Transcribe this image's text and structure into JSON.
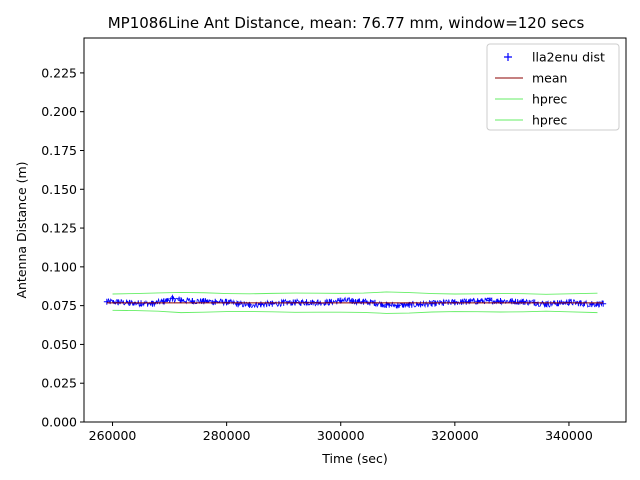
{
  "chart_data": {
    "type": "line",
    "title": "MP1086Line Ant Distance, mean: 76.77 mm, window=120 secs",
    "xlabel": "Time (sec)",
    "ylabel": "Antenna Distance (m)",
    "xlim": [
      255000,
      350000
    ],
    "ylim": [
      0.0,
      0.2475
    ],
    "xticks": [
      260000,
      280000,
      300000,
      320000,
      340000
    ],
    "xtick_labels": [
      "260000",
      "280000",
      "300000",
      "320000",
      "340000"
    ],
    "yticks": [
      0.0,
      0.025,
      0.05,
      0.075,
      0.1,
      0.125,
      0.15,
      0.175,
      0.2,
      0.225
    ],
    "ytick_labels": [
      "0.000",
      "0.025",
      "0.050",
      "0.075",
      "0.100",
      "0.125",
      "0.150",
      "0.175",
      "0.200",
      "0.225"
    ],
    "grid": false,
    "legend_position": "top-right",
    "series": [
      {
        "name": "lla2enu dist",
        "style": "marker-plus",
        "color": "#0000ff",
        "x": [
          259000,
          261000,
          263000,
          265000,
          267000,
          269000,
          270500,
          272000,
          274000,
          276000,
          278000,
          280000,
          282000,
          284000,
          286000,
          288000,
          290000,
          292000,
          294000,
          296000,
          298000,
          300000,
          302000,
          304000,
          306000,
          308000,
          310000,
          312000,
          314000,
          316000,
          318000,
          320000,
          322000,
          324000,
          326000,
          328000,
          330000,
          332000,
          334000,
          336000,
          338000,
          340000,
          342000,
          344000,
          346000
        ],
        "values": [
          0.0775,
          0.0772,
          0.0768,
          0.0765,
          0.0762,
          0.0778,
          0.0795,
          0.0785,
          0.078,
          0.0778,
          0.0775,
          0.0772,
          0.076,
          0.0755,
          0.0758,
          0.0762,
          0.0768,
          0.077,
          0.0772,
          0.077,
          0.0772,
          0.0782,
          0.078,
          0.0775,
          0.0768,
          0.0755,
          0.0752,
          0.0755,
          0.0758,
          0.0762,
          0.0768,
          0.0772,
          0.0775,
          0.0778,
          0.0782,
          0.078,
          0.0778,
          0.0775,
          0.077,
          0.076,
          0.0765,
          0.0772,
          0.0765,
          0.076,
          0.0762
        ]
      },
      {
        "name": "mean",
        "style": "line",
        "color": "#8b0000",
        "x": [
          259000,
          346000
        ],
        "values": [
          0.07677,
          0.07677
        ]
      },
      {
        "name": "hprec",
        "style": "line",
        "color": "#66ee66",
        "x": [
          260000,
          264000,
          268000,
          272000,
          276000,
          280000,
          284000,
          288000,
          292000,
          296000,
          300000,
          304000,
          308000,
          312000,
          316000,
          320000,
          324000,
          328000,
          332000,
          336000,
          340000,
          345000
        ],
        "values": [
          0.0825,
          0.0828,
          0.0832,
          0.0835,
          0.0833,
          0.0828,
          0.0826,
          0.0829,
          0.0831,
          0.083,
          0.0829,
          0.0831,
          0.0838,
          0.0834,
          0.0828,
          0.0825,
          0.0826,
          0.0828,
          0.0827,
          0.0823,
          0.0826,
          0.083
        ]
      },
      {
        "name": "hprec",
        "style": "line",
        "color": "#66ee66",
        "x": [
          260000,
          264000,
          268000,
          272000,
          276000,
          280000,
          284000,
          288000,
          292000,
          296000,
          300000,
          304000,
          308000,
          312000,
          316000,
          320000,
          324000,
          328000,
          332000,
          336000,
          340000,
          345000
        ],
        "values": [
          0.072,
          0.0718,
          0.0714,
          0.0705,
          0.0708,
          0.0712,
          0.0712,
          0.071,
          0.0707,
          0.0708,
          0.0708,
          0.0706,
          0.07,
          0.0702,
          0.0709,
          0.0712,
          0.0711,
          0.0709,
          0.071,
          0.0714,
          0.071,
          0.0705
        ]
      }
    ]
  }
}
